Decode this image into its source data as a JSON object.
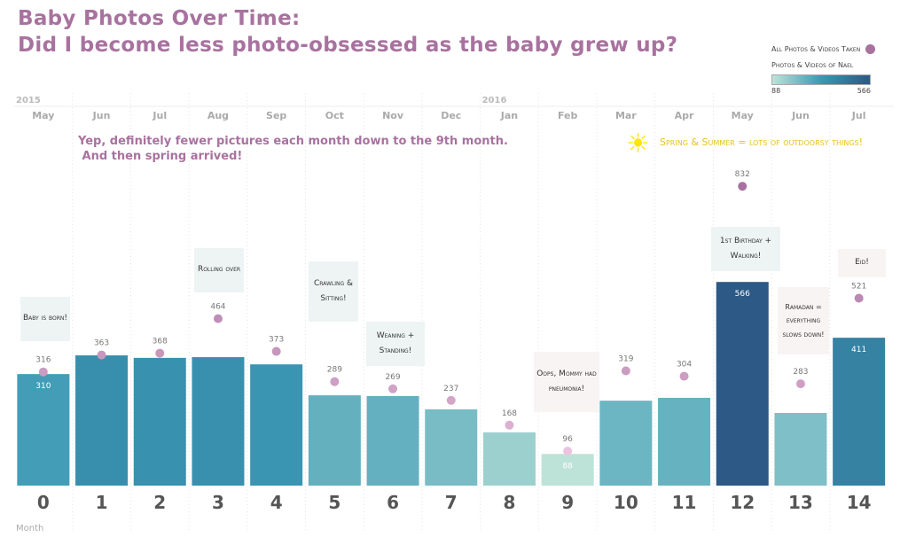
{
  "chart_data": {
    "type": "bar",
    "title": "Baby Photos Over Time:",
    "subtitle": "Did I become less photo-obsessed as the baby grew up?",
    "xlabel": "Month",
    "categories": [
      "0",
      "1",
      "2",
      "3",
      "4",
      "5",
      "6",
      "7",
      "8",
      "9",
      "10",
      "11",
      "12",
      "13",
      "14"
    ],
    "months": [
      "May",
      "Jun",
      "Jul",
      "Aug",
      "Sep",
      "Oct",
      "Nov",
      "Dec",
      "Jan",
      "Feb",
      "Mar",
      "Apr",
      "May",
      "Jun",
      "Jul"
    ],
    "years": [
      {
        "label": "2015",
        "index": 0
      },
      {
        "label": "2016",
        "index": 8
      }
    ],
    "series": [
      {
        "name": "Photos & Videos of Nael",
        "type": "bar",
        "values": [
          310,
          362,
          355,
          357,
          337,
          251,
          249,
          212,
          148,
          88,
          236,
          244,
          566,
          202,
          411
        ],
        "labels": {
          "0": "310",
          "9": "88",
          "12": "566",
          "14": "411"
        }
      },
      {
        "name": "All Photos & Videos Taken",
        "type": "scatter",
        "values": [
          316,
          363,
          368,
          464,
          373,
          289,
          269,
          237,
          168,
          96,
          319,
          304,
          832,
          283,
          521
        ]
      }
    ],
    "color_range": {
      "min": 88,
      "max": 566,
      "min_label": "88",
      "max_label": "566",
      "colors": [
        "#bde3d8",
        "#3a98b4",
        "#2c5985"
      ]
    },
    "dot_color": "#a8729f",
    "legend_placement": "top-right",
    "grid": "vertical dotted"
  },
  "annotations": {
    "main": "Yep, definitely fewer pictures each month down to the 9th month.\n And then spring arrived!",
    "spring": "Spring & Summer = lots of outdoorsy things!",
    "born": "Baby is born!",
    "rolling": "Rolling over",
    "crawling": "Crawling & Sitting!",
    "weaning": "Weaning + Standing!",
    "oops": "Oops, Mommy had pneumonia!",
    "birthday": "1st Birthday + Walking!",
    "ramadan": "Ramadan = everything slows down!",
    "eid": "Eid!"
  }
}
